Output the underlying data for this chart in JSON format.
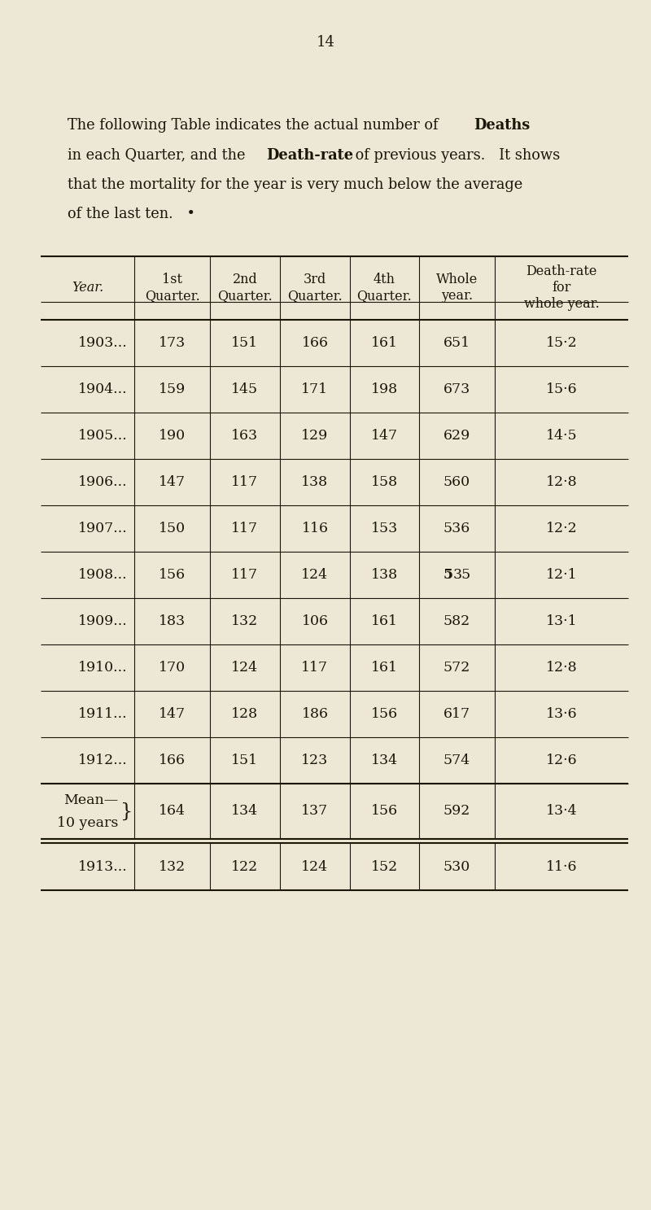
{
  "page_number": "14",
  "bg_color": "#ede8d5",
  "text_color": "#1a1708",
  "line_color": "#1a1708",
  "intro_line1_normal": "The following Table indicates the actual number of ",
  "intro_line1_bold": "Deaths",
  "intro_line2_normal1": "in each Quarter, and the ",
  "intro_line2_bold": "Death-rate",
  "intro_line2_normal2": " of previous years.   It shows",
  "intro_line3": "that the mortality for the year is very much below the average",
  "intro_line4": "of the last ten.   •",
  "col_headers": [
    "Year.",
    "1st\nQuarter.",
    "2nd\nQuarter.",
    "3rd\nQuarter.",
    "4th\nQuarter.",
    "Whole\nyear.",
    "Death-rate\nfor\nwhole year."
  ],
  "rows": [
    {
      "label": "1903...",
      "vals": [
        "173",
        "151",
        "166",
        "161",
        "651",
        "15·2"
      ]
    },
    {
      "label": "1904...",
      "vals": [
        "159",
        "145",
        "171",
        "198",
        "673",
        "15·6"
      ]
    },
    {
      "label": "1905...",
      "vals": [
        "190",
        "163",
        "129",
        "147",
        "629",
        "14·5"
      ]
    },
    {
      "label": "1906...",
      "vals": [
        "147",
        "117",
        "138",
        "158",
        "560",
        "12·8"
      ]
    },
    {
      "label": "1907...",
      "vals": [
        "150",
        "117",
        "116",
        "153",
        "536",
        "12·2"
      ]
    },
    {
      "label": "1908...",
      "vals": [
        "156",
        "117",
        "124",
        "138",
        "535",
        "12·1"
      ],
      "bold_whole": true
    },
    {
      "label": "1909...",
      "vals": [
        "183",
        "132",
        "106",
        "161",
        "582",
        "13·1"
      ]
    },
    {
      "label": "1910...",
      "vals": [
        "170",
        "124",
        "117",
        "161",
        "572",
        "12·8"
      ]
    },
    {
      "label": "1911...",
      "vals": [
        "147",
        "128",
        "186",
        "156",
        "617",
        "13·6"
      ]
    },
    {
      "label": "1912...",
      "vals": [
        "166",
        "151",
        "123",
        "134",
        "574",
        "12·6"
      ]
    }
  ],
  "mean_label1": "Mean—",
  "mean_label2": "10 years",
  "mean_vals": [
    "164",
    "134",
    "137",
    "156",
    "592",
    "13·4"
  ],
  "last_label": "1913...",
  "last_vals": [
    "132",
    "122",
    "124",
    "152",
    "530",
    "11·6"
  ],
  "lw_thick": 1.5,
  "lw_thin": 0.8,
  "header_fontsize": 11.5,
  "data_fontsize": 12.5,
  "page_fontsize": 13.0,
  "intro_fontsize": 12.8
}
